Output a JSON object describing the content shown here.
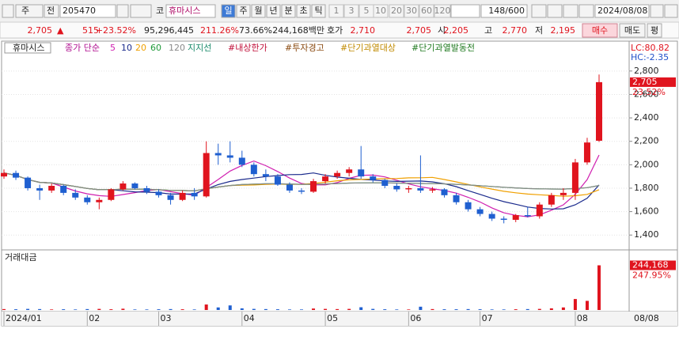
{
  "toolbar": {
    "market": "주",
    "kind": "전",
    "code": "205470",
    "prefix": "코",
    "name": "휴마시스",
    "periods": [
      "일",
      "주",
      "월",
      "년",
      "분",
      "초",
      "틱"
    ],
    "intervals": [
      "1",
      "3",
      "5",
      "10",
      "20",
      "30",
      "60",
      "120"
    ],
    "count": "148/600",
    "date": "2024/08/08"
  },
  "quote": {
    "price": "2,705",
    "arrow": "▲",
    "change": "515",
    "change_pct": "+23.52%",
    "volume": "95,296,445",
    "volume_ratio": "211.26%",
    "turnover_rate": "73.66%",
    "amount": "244,168백만",
    "ask_label": "호가",
    "ask": "2,710",
    "bid": "2,705",
    "open_label": "시",
    "open": "2,205",
    "high_label": "고",
    "high": "2,770",
    "low_label": "저",
    "low": "2,195",
    "buy": "매수",
    "sell": "매도",
    "avg": "평"
  },
  "legend": {
    "name": "휴마시스",
    "ma": "종가 단순",
    "periods": [
      "5",
      "10",
      "20",
      "60",
      "120"
    ],
    "support": "지지선",
    "flags": [
      "#내상한가",
      "#투자경고",
      "#단기과열대상",
      "#단기과열발동전"
    ]
  },
  "chart_data": {
    "type": "candlestick",
    "up_color": "#e0141e",
    "down_color": "#1f5fd0",
    "ma_colors": [
      "#d01fb0",
      "#1a2a8c",
      "#f0a000",
      "#1f9a3a",
      "#8a8a8a"
    ],
    "categories": [
      "2024/01",
      null,
      null,
      null,
      null,
      null,
      null,
      "02",
      null,
      null,
      null,
      null,
      null,
      "03",
      null,
      null,
      null,
      null,
      null,
      null,
      "04",
      null,
      null,
      null,
      null,
      null,
      null,
      "05",
      null,
      null,
      null,
      null,
      null,
      null,
      "06",
      null,
      null,
      null,
      null,
      null,
      "07",
      null,
      null,
      null,
      null,
      null,
      null,
      null,
      "08",
      null,
      null
    ],
    "open": [
      1900,
      1930,
      1890,
      1800,
      1780,
      1820,
      1760,
      1720,
      1680,
      1700,
      1790,
      1840,
      1800,
      1770,
      1740,
      1700,
      1760,
      1730,
      2100,
      2080,
      2060,
      2000,
      1920,
      1900,
      1830,
      1780,
      1770,
      1860,
      1900,
      1930,
      1960,
      1900,
      1870,
      1820,
      1790,
      1800,
      1780,
      1790,
      1740,
      1680,
      1620,
      1580,
      1540,
      1530,
      1570,
      1560,
      1660,
      1740,
      1760,
      2020,
      2205
    ],
    "high": [
      1960,
      1950,
      1900,
      1830,
      1840,
      1830,
      1790,
      1740,
      1720,
      1800,
      1860,
      1850,
      1820,
      1790,
      1760,
      1780,
      1800,
      2200,
      2180,
      2200,
      2120,
      2020,
      1960,
      1920,
      1850,
      1800,
      1880,
      1920,
      1950,
      1980,
      2160,
      1920,
      1880,
      1840,
      1820,
      2080,
      1810,
      1800,
      1760,
      1700,
      1640,
      1600,
      1560,
      1580,
      1640,
      1680,
      1760,
      1800,
      2050,
      2230,
      2770
    ],
    "low": [
      1880,
      1870,
      1780,
      1700,
      1760,
      1740,
      1700,
      1660,
      1620,
      1690,
      1780,
      1790,
      1750,
      1720,
      1660,
      1690,
      1700,
      1720,
      2000,
      2020,
      1980,
      1900,
      1860,
      1820,
      1760,
      1750,
      1760,
      1840,
      1880,
      1900,
      1880,
      1850,
      1800,
      1770,
      1760,
      1760,
      1760,
      1720,
      1660,
      1600,
      1560,
      1520,
      1500,
      1510,
      1550,
      1540,
      1640,
      1700,
      1700,
      2000,
      2195
    ],
    "close": [
      1930,
      1890,
      1800,
      1780,
      1820,
      1760,
      1720,
      1680,
      1700,
      1790,
      1840,
      1800,
      1770,
      1740,
      1700,
      1760,
      1730,
      2100,
      2080,
      2060,
      2000,
      1920,
      1900,
      1830,
      1780,
      1770,
      1860,
      1900,
      1930,
      1960,
      1900,
      1870,
      1820,
      1790,
      1800,
      1780,
      1790,
      1740,
      1680,
      1620,
      1580,
      1540,
      1530,
      1570,
      1560,
      1660,
      1740,
      1760,
      2020,
      2190,
      2705
    ],
    "volume": [
      5000,
      4000,
      6000,
      5000,
      3000,
      4000,
      3000,
      5000,
      6000,
      4000,
      7000,
      3000,
      3000,
      4000,
      5000,
      4000,
      3000,
      30000,
      14000,
      25000,
      9000,
      6000,
      5000,
      4000,
      3000,
      3000,
      8000,
      6000,
      5000,
      6000,
      15000,
      6000,
      4000,
      3000,
      3000,
      18000,
      5000,
      4000,
      4000,
      5000,
      4000,
      3000,
      3000,
      4000,
      5000,
      6000,
      9000,
      14000,
      60000,
      50000,
      244168
    ],
    "ylim": [
      1280,
      3035
    ],
    "yticks": [
      {
        "value": 1400,
        "label": "1,400"
      },
      {
        "value": 1600,
        "label": "1,600"
      },
      {
        "value": 1800,
        "label": "1,800"
      },
      {
        "value": 2000,
        "label": "2,000"
      },
      {
        "value": 2200,
        "label": "2,200"
      },
      {
        "value": 2400,
        "label": "2,400"
      },
      {
        "value": 2600,
        "label": "2,600"
      },
      {
        "value": 2800,
        "label": "2,800"
      }
    ],
    "volume_lim": [
      0,
      255000
    ],
    "volume_title": "거래대금",
    "lc": "LC:80.82",
    "hc": "HC:-2.35",
    "last_price": "2,705",
    "last_pct": "23.52%",
    "last_volume": "244,168",
    "last_volume_pct": "247.95%",
    "end_date": "08/08"
  }
}
